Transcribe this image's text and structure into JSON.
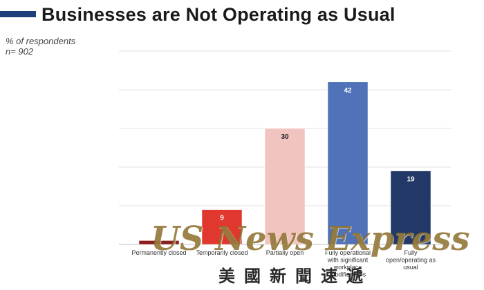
{
  "header": {
    "title": "Businesses are Not Operating as Usual",
    "subtitle_line1": "% of respondents",
    "subtitle_line2": "n= 902"
  },
  "watermark": {
    "english": "US News Express",
    "chinese": "美國新聞速遞"
  },
  "chart_data": {
    "type": "bar",
    "title": "Businesses are Not Operating as Usual",
    "ylabel": "% of respondents",
    "ylim": [
      0,
      50
    ],
    "grid": true,
    "categories": [
      "Permanently closed",
      "Temporarily closed",
      "Partially open",
      "Fully operational with significant workplace modifications",
      "Fully open/operating as usual"
    ],
    "category_lines": [
      [
        "Permanently closed"
      ],
      [
        "Temporarily closed"
      ],
      [
        "Partially open"
      ],
      [
        "Fully operational",
        "with significant",
        "workplace",
        "modifications"
      ],
      [
        "Fully",
        "open/operating as",
        "usual"
      ]
    ],
    "values": [
      1,
      9,
      30,
      42,
      19
    ],
    "value_labels": [
      "",
      "9",
      "30",
      "42",
      "19"
    ],
    "colors": [
      "#8b1e1e",
      "#e0382f",
      "#f2c4c0",
      "#4f72b8",
      "#223866"
    ],
    "label_colors": [
      "#ffffff",
      "#ffffff",
      "#1a1a1a",
      "#ffffff",
      "#ffffff"
    ]
  }
}
